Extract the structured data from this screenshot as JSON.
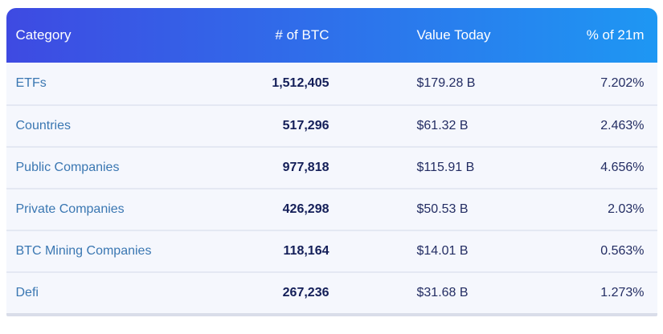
{
  "colors": {
    "header_gradient_start": "#3e4ae2",
    "header_gradient_end": "#1e97f3",
    "header_text": "#ffffff",
    "category_link": "#3a77b2",
    "btc_number": "#131e58",
    "value_text": "#232d63",
    "row_background": "#f5f7fd",
    "row_separator": "#e4e8f3",
    "bottom_bar": "#d9dde9"
  },
  "table": {
    "columns": [
      {
        "label": "Category"
      },
      {
        "label": "# of BTC"
      },
      {
        "label": "Value Today"
      },
      {
        "label": "% of 21m"
      }
    ],
    "rows": [
      {
        "category": "ETFs",
        "btc": "1,512,405",
        "value": "$179.28 B",
        "pct": "7.202%"
      },
      {
        "category": "Countries",
        "btc": "517,296",
        "value": "$61.32 B",
        "pct": "2.463%"
      },
      {
        "category": "Public Companies",
        "btc": "977,818",
        "value": "$115.91 B",
        "pct": "4.656%"
      },
      {
        "category": "Private Companies",
        "btc": "426,298",
        "value": "$50.53 B",
        "pct": "2.03%"
      },
      {
        "category": "BTC Mining Companies",
        "btc": "118,164",
        "value": "$14.01 B",
        "pct": "0.563%"
      },
      {
        "category": "Defi",
        "btc": "267,236",
        "value": "$31.68 B",
        "pct": "1.273%"
      }
    ]
  }
}
